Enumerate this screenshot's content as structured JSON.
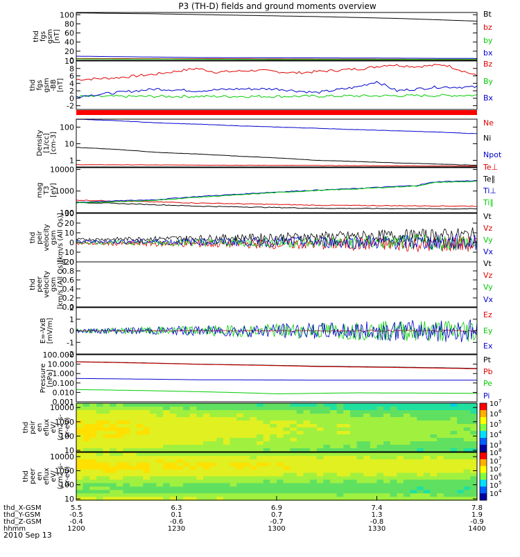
{
  "title": "P3 (TH-D) fields and ground moments overview",
  "date_label": "2010 Sep 13",
  "x_axis": {
    "rows": [
      {
        "label": "thd_X-GSM",
        "values": [
          "5.5",
          "6.3",
          "6.9",
          "7.4",
          "7.8"
        ]
      },
      {
        "label": "thd_Y-GSM",
        "values": [
          "-0.5",
          "0.1",
          "0.7",
          "1.3",
          "1.9"
        ]
      },
      {
        "label": "thd_Z-GSM",
        "values": [
          "-0.4",
          "-0.6",
          "-0.7",
          "-0.8",
          "-0.9"
        ]
      },
      {
        "label": "hhmm",
        "values": [
          "1200",
          "1230",
          "1300",
          "1330",
          "1400"
        ]
      }
    ]
  },
  "colors": {
    "black": "#000000",
    "red": "#e00000",
    "green": "#00cc00",
    "blue": "#0000cc"
  },
  "chart_data": [
    {
      "id": "fgs",
      "type": "line",
      "ylabel": [
        "thd",
        "fgs",
        "gsm",
        "[nT]"
      ],
      "ylim": [
        0,
        105
      ],
      "ticks": [
        "0",
        "20",
        "40",
        "60",
        "80",
        "100"
      ],
      "tick_values": [
        0,
        20,
        40,
        60,
        80,
        100
      ],
      "series": [
        {
          "name": "Bt",
          "color": "#000000",
          "x": [
            0,
            0.2,
            0.4,
            0.6,
            0.8,
            1.0
          ],
          "values": [
            104,
            102,
            99,
            96,
            92,
            86
          ]
        },
        {
          "name": "bz",
          "color": "#e00000",
          "x": [
            0,
            0.5,
            1.0
          ],
          "values": [
            4,
            3,
            2
          ]
        },
        {
          "name": "by",
          "color": "#00cc00",
          "x": [
            0,
            0.5,
            1.0
          ],
          "values": [
            3,
            2,
            2
          ]
        },
        {
          "name": "bx",
          "color": "#0000cc",
          "x": [
            0,
            0.3,
            0.7,
            1.0
          ],
          "values": [
            9,
            6,
            5,
            4
          ]
        }
      ]
    },
    {
      "id": "fgs-dsl",
      "type": "line",
      "ylabel": [
        "thd",
        "fgs",
        "gsm",
        "-BB",
        "[nT]"
      ],
      "ylim": [
        -3,
        10
      ],
      "ticks": [
        "-2",
        "0",
        "2",
        "4",
        "6",
        "8",
        "10"
      ],
      "tick_values": [
        -2,
        0,
        2,
        4,
        6,
        8,
        10
      ],
      "series": [
        {
          "name": "Bz",
          "color": "#e00000",
          "x": [
            0,
            0.1,
            0.2,
            0.3,
            0.35,
            0.45,
            0.55,
            0.65,
            0.72,
            0.78,
            0.85,
            0.92,
            1.0
          ],
          "values": [
            5,
            5.5,
            6.5,
            8,
            7,
            7.5,
            6.8,
            7.5,
            8,
            9,
            8.5,
            9,
            6
          ]
        },
        {
          "name": "By",
          "color": "#00cc00",
          "x": [
            0,
            0.5,
            1.0
          ],
          "values": [
            0.5,
            0.5,
            0.8
          ]
        },
        {
          "name": "Bx",
          "color": "#0000cc",
          "x": [
            0,
            0.1,
            0.2,
            0.3,
            0.4,
            0.5,
            0.6,
            0.7,
            0.75,
            0.8,
            0.9,
            1.0
          ],
          "values": [
            0.5,
            1.5,
            2.5,
            2,
            2.5,
            2.5,
            1.5,
            3,
            4.5,
            2,
            3,
            3
          ]
        }
      ]
    },
    {
      "id": "density",
      "type": "line",
      "ylabel": [
        "Density",
        "[1/cc]",
        "[cm-3]"
      ],
      "ylim": [
        0.4,
        300
      ],
      "log": true,
      "ticks": [
        "1",
        "10",
        "100"
      ],
      "tick_values": [
        1,
        10,
        100
      ],
      "series": [
        {
          "name": "Ne",
          "color": "#e00000",
          "x": [
            0,
            1.0
          ],
          "values": [
            0.55,
            0.45
          ]
        },
        {
          "name": "Ni",
          "color": "#000000",
          "x": [
            0,
            0.2,
            0.4,
            0.6,
            0.8,
            1.0
          ],
          "values": [
            6,
            3,
            1.8,
            1.0,
            0.7,
            0.5
          ]
        },
        {
          "name": "Npot",
          "color": "#0000cc",
          "x": [
            0,
            0.2,
            0.4,
            0.5,
            0.7,
            1.0
          ],
          "values": [
            300,
            180,
            120,
            100,
            70,
            40
          ]
        }
      ]
    },
    {
      "id": "temp",
      "type": "line",
      "ylabel": [
        "mag",
        "T3",
        "[eV]"
      ],
      "ylim": [
        100,
        12000
      ],
      "log": true,
      "ticks": [
        "100",
        "1000",
        "10000"
      ],
      "tick_values": [
        100,
        1000,
        10000
      ],
      "series": [
        {
          "name": "Te⊥",
          "color": "#e00000",
          "x": [
            0,
            0.3,
            0.6,
            1.0
          ],
          "values": [
            380,
            280,
            220,
            200
          ]
        },
        {
          "name": "Te∥",
          "color": "#000000",
          "x": [
            0,
            0.3,
            0.6,
            1.0
          ],
          "values": [
            300,
            200,
            160,
            150
          ]
        },
        {
          "name": "Ti⊥",
          "color": "#0000cc",
          "x": [
            0,
            0.2,
            0.4,
            0.5,
            0.7,
            0.85,
            0.9,
            1.0
          ],
          "values": [
            300,
            400,
            700,
            900,
            1300,
            1800,
            2700,
            3000
          ]
        },
        {
          "name": "Ti∥",
          "color": "#00cc00",
          "x": [
            0,
            0.2,
            0.4,
            0.5,
            0.7,
            0.85,
            0.9,
            1.0
          ],
          "values": [
            280,
            370,
            650,
            850,
            1250,
            1700,
            2500,
            2800
          ]
        }
      ]
    },
    {
      "id": "peir-vel",
      "type": "line",
      "ylabel": [
        "thd",
        "peir",
        "velocity",
        "gsm",
        "[km/s (All Qs)]"
      ],
      "ylim": [
        -20,
        30
      ],
      "ticks": [
        "-20",
        "-10",
        "0",
        "10",
        "20",
        "30"
      ],
      "tick_values": [
        -20,
        -10,
        0,
        10,
        20,
        30
      ],
      "series": [
        {
          "name": "Vt",
          "color": "#000000",
          "x": [
            0,
            1.0
          ],
          "values": [
            3,
            8
          ]
        },
        {
          "name": "Vz",
          "color": "#e00000",
          "x": [
            0,
            1.0
          ],
          "values": [
            -1,
            -2
          ]
        },
        {
          "name": "Vy",
          "color": "#00cc00",
          "x": [
            0,
            1.0
          ],
          "values": [
            0,
            0
          ]
        },
        {
          "name": "Vx",
          "color": "#0000cc",
          "x": [
            0,
            1.0
          ],
          "values": [
            1,
            0
          ]
        }
      ]
    },
    {
      "id": "peer-vel",
      "type": "line",
      "ylabel": [
        "thd",
        "peer",
        "velocity",
        "gsm",
        "[km/s (All Qs)]"
      ],
      "ylim": [
        0,
        1
      ],
      "ticks": [
        "0.0",
        "0.2",
        "0.4",
        "0.6",
        "0.8",
        "1.0"
      ],
      "tick_values": [
        0,
        0.2,
        0.4,
        0.6,
        0.8,
        1.0
      ],
      "series": [
        {
          "name": "Vt",
          "color": "#000000",
          "x": [],
          "values": []
        },
        {
          "name": "Vz",
          "color": "#e00000",
          "x": [],
          "values": []
        },
        {
          "name": "Vy",
          "color": "#00cc00",
          "x": [],
          "values": []
        },
        {
          "name": "Vx",
          "color": "#0000cc",
          "x": [],
          "values": []
        }
      ]
    },
    {
      "id": "efield",
      "type": "line",
      "ylabel": [
        "E=-VxB",
        "[mV/m]"
      ],
      "ylim": [
        -2,
        2
      ],
      "ticks": [
        "-2",
        "-1",
        "0",
        "1",
        "2"
      ],
      "tick_values": [
        -2,
        -1,
        0,
        1,
        2
      ],
      "series": [
        {
          "name": "Ez",
          "color": "#e00000",
          "x": [
            0,
            1.0
          ],
          "values": [
            0,
            0
          ]
        },
        {
          "name": "Ey",
          "color": "#00cc00",
          "x": [
            0,
            1.0
          ],
          "values": [
            0,
            0
          ]
        },
        {
          "name": "Ex",
          "color": "#0000cc",
          "x": [
            0,
            1.0
          ],
          "values": [
            0,
            0
          ]
        }
      ]
    },
    {
      "id": "pressure",
      "type": "line",
      "ylabel": [
        "Pressure",
        "[nPa]"
      ],
      "ylim": [
        0.001,
        100
      ],
      "log": true,
      "ticks": [
        "0.001",
        "0.010",
        "0.100",
        "1.000",
        "10.000",
        "100.000"
      ],
      "tick_values": [
        0.001,
        0.01,
        0.1,
        1,
        10,
        100
      ],
      "series": [
        {
          "name": "Pt",
          "color": "#000000",
          "x": [
            0,
            0.3,
            0.6,
            1.0
          ],
          "values": [
            18,
            10,
            6,
            3.5
          ]
        },
        {
          "name": "Pb",
          "color": "#e00000",
          "x": [
            0,
            0.3,
            0.6,
            1.0
          ],
          "values": [
            17,
            9.5,
            5.5,
            3.2
          ]
        },
        {
          "name": "Pe",
          "color": "#00cc00",
          "x": [
            0,
            0.3,
            0.5,
            0.7,
            1.0
          ],
          "values": [
            0.02,
            0.012,
            0.007,
            0.009,
            0.008
          ]
        },
        {
          "name": "Pi",
          "color": "#0000cc",
          "x": [
            0,
            0.3,
            0.6,
            1.0
          ],
          "values": [
            0.3,
            0.22,
            0.2,
            0.2
          ]
        }
      ]
    },
    {
      "id": "peir-en",
      "type": "heatmap",
      "ylabel": [
        "thd",
        "peir",
        "en",
        "eflux",
        "eV/",
        "(cm2-s-",
        "sr-eV)"
      ],
      "ylim": [
        8,
        20000
      ],
      "log": true,
      "ticks": [
        "10",
        "100",
        "1000",
        "10000"
      ],
      "tick_values": [
        10,
        100,
        1000,
        10000
      ],
      "colorbar": {
        "labels": [
          "10",
          "10",
          "10",
          "10",
          "10"
        ],
        "exponents": [
          "3",
          "4",
          "5",
          "6",
          "7"
        ]
      }
    },
    {
      "id": "peer-en",
      "type": "heatmap",
      "ylabel": [
        "thd",
        "peer",
        "en",
        "eflux",
        "eV/",
        "(cm2-s-",
        "sr-eV)"
      ],
      "ylim": [
        8,
        20000
      ],
      "log": true,
      "ticks": [
        "10",
        "100",
        "1000",
        "10000"
      ],
      "tick_values": [
        10,
        100,
        1000,
        10000
      ],
      "colorbar": {
        "labels": [
          "10",
          "10",
          "10",
          "10",
          "10",
          "10"
        ],
        "exponents": [
          "4",
          "5",
          "6",
          "7",
          "7",
          "8"
        ]
      }
    }
  ]
}
